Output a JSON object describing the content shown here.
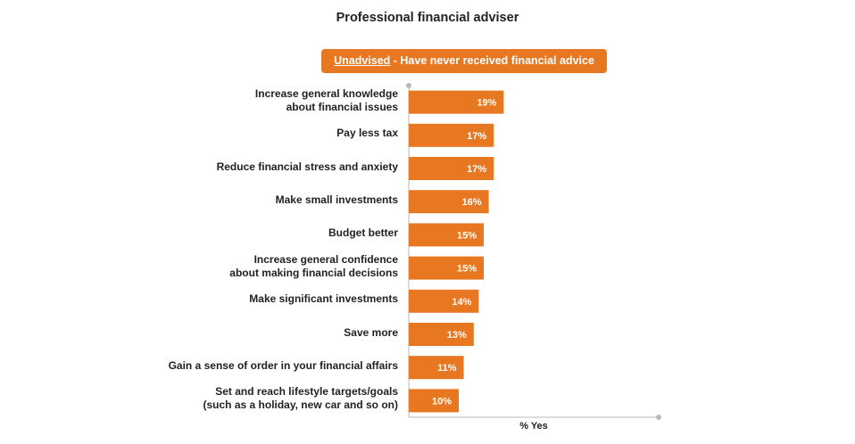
{
  "title": "Professional financial adviser",
  "subtitle": {
    "emphasis": "Unadvised",
    "rest": " - Have never received financial advice"
  },
  "colors": {
    "bar": "#e87722",
    "axis": "#b8b8b8"
  },
  "chart_data": {
    "type": "bar",
    "orientation": "horizontal",
    "title": "Professional financial adviser",
    "xlabel": "% Yes",
    "ylabel": "",
    "xlim": [
      0,
      50
    ],
    "grid": false,
    "categories": [
      "Increase general knowledge about financial issues",
      "Pay less tax",
      "Reduce financial stress and anxiety",
      "Make small investments",
      "Budget better",
      "Increase general confidence about making financial decisions",
      "Make significant investments",
      "Save more",
      "Gain a sense of order in your financial affairs",
      "Set and reach lifestyle targets/goals (such as a holiday, new car and so on)"
    ],
    "category_lines": [
      [
        "Increase general knowledge",
        "about financial issues"
      ],
      [
        "Pay less tax"
      ],
      [
        "Reduce financial stress and anxiety"
      ],
      [
        "Make small investments"
      ],
      [
        "Budget better"
      ],
      [
        "Increase general confidence",
        "about making financial decisions"
      ],
      [
        "Make significant investments"
      ],
      [
        "Save more"
      ],
      [
        "Gain a sense of order in your financial affairs"
      ],
      [
        "Set and reach lifestyle targets/goals",
        "(such as a holiday, new car and so on)"
      ]
    ],
    "values": [
      19,
      17,
      17,
      16,
      15,
      15,
      14,
      13,
      11,
      10
    ],
    "value_labels": [
      "19%",
      "17%",
      "17%",
      "16%",
      "15%",
      "15%",
      "14%",
      "13%",
      "11%",
      "10%"
    ]
  }
}
